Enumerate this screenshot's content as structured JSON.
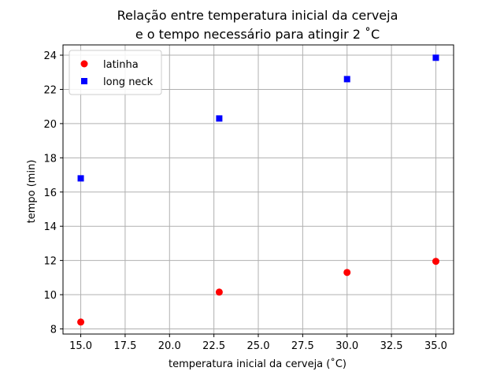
{
  "chart_data": {
    "type": "scatter",
    "title_lines": [
      "Relação entre temperatura inicial da cerveja",
      "e o tempo necessário para atingir 2 ˚C"
    ],
    "xlabel": "temperatura inicial da cerveja (˚C)",
    "ylabel": "tempo (min)",
    "xlim": [
      14.0,
      36.0
    ],
    "ylim": [
      7.7,
      24.6
    ],
    "xticks": [
      15.0,
      17.5,
      20.0,
      22.5,
      25.0,
      27.5,
      30.0,
      32.5,
      35.0
    ],
    "xtick_labels": [
      "15.0",
      "17.5",
      "20.0",
      "22.5",
      "25.0",
      "27.5",
      "30.0",
      "32.5",
      "35.0"
    ],
    "yticks": [
      8,
      10,
      12,
      14,
      16,
      18,
      20,
      22,
      24
    ],
    "ytick_labels": [
      "8",
      "10",
      "12",
      "14",
      "16",
      "18",
      "20",
      "22",
      "24"
    ],
    "grid": true,
    "legend_position": "top-left",
    "series": [
      {
        "name": "latinha",
        "marker": "circle",
        "color": "#ff0000",
        "x": [
          15.0,
          22.8,
          30.0,
          35.0
        ],
        "y": [
          8.4,
          10.15,
          11.3,
          11.95
        ]
      },
      {
        "name": "long neck",
        "marker": "square",
        "color": "#0000ff",
        "x": [
          15.0,
          22.8,
          30.0,
          35.0
        ],
        "y": [
          16.8,
          20.3,
          22.6,
          23.85
        ]
      }
    ]
  }
}
